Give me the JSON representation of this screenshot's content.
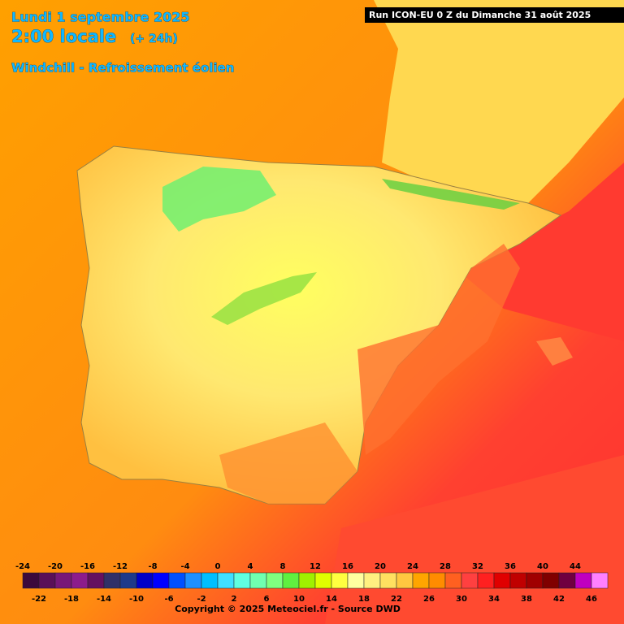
{
  "header": {
    "date": "Lundi 1 septembre 2025",
    "time": "2:00 locale",
    "offset": "(+ 24h)",
    "parameter": "Windchill - Refroissement éolien",
    "run": "Run ICON-EU 0 Z du Dimanche 31 août 2025"
  },
  "legend": {
    "ticks": [
      -24,
      -22,
      -20,
      -18,
      -16,
      -14,
      -12,
      -10,
      -8,
      -6,
      -4,
      -2,
      0,
      2,
      4,
      6,
      8,
      10,
      12,
      14,
      16,
      18,
      20,
      22,
      24,
      26,
      28,
      30,
      32,
      34,
      36,
      38,
      40,
      42,
      44,
      46
    ],
    "colors": [
      "#3c0a3c",
      "#5a1058",
      "#781878",
      "#8c1c8c",
      "#641060",
      "#303068",
      "#1e3a8a",
      "#0000c8",
      "#0000ff",
      "#0050ff",
      "#1e90ff",
      "#00bfff",
      "#40e0ff",
      "#60ffe0",
      "#70ffb0",
      "#80ff80",
      "#60f040",
      "#a0f000",
      "#e0ff00",
      "#ffff40",
      "#ffffa0",
      "#fff080",
      "#ffe060",
      "#ffc840",
      "#ffa500",
      "#ff8c00",
      "#ff6020",
      "#ff4040",
      "#ff2020",
      "#e00000",
      "#c00000",
      "#a00000",
      "#800000",
      "#700040",
      "#c000c0",
      "#ff80ff"
    ]
  },
  "footer": {
    "copyright": "Copyright © 2025 Meteociel.fr - Source DWD"
  }
}
